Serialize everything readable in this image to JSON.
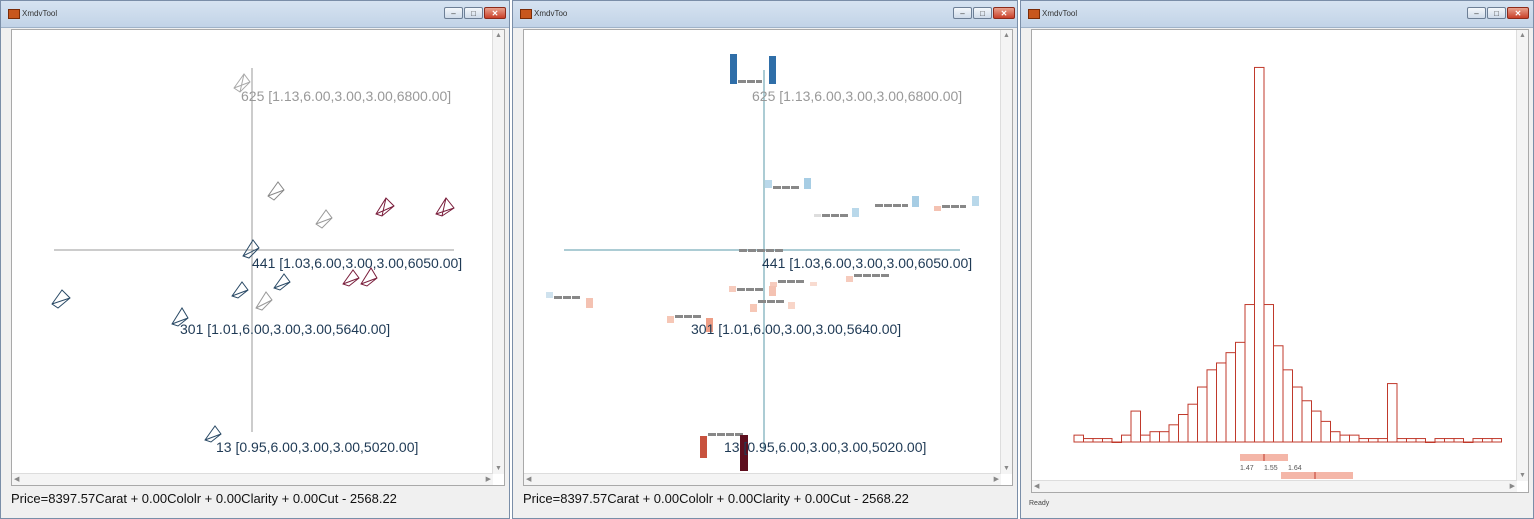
{
  "windows": [
    {
      "title": "XmdvTool",
      "formula": "Price=8397.57Carat + 0.00Cololr + 0.00Clarity + 0.00Cut - 2568.22"
    },
    {
      "title": "XmdvToo",
      "formula": "Price=8397.57Carat + 0.00Cololr + 0.00Clarity + 0.00Cut - 2568.22"
    },
    {
      "title": "XmdvTool",
      "status": "Ready"
    }
  ],
  "labels": {
    "p625": "625 [1.13,6.00,3.00,3.00,6800.00]",
    "p441": "441 [1.03,6.00,3.00,3.00,6050.00]",
    "p301": "301 [1.01,6.00,3.00,3.00,5640.00]",
    "p13": "13 [0.95,6.00,3.00,3.00,5020.00]"
  },
  "histogram": {
    "values": [
      2,
      1,
      1,
      1,
      0,
      2,
      9,
      2,
      3,
      3,
      5,
      8,
      11,
      16,
      21,
      23,
      26,
      29,
      40,
      109,
      40,
      28,
      21,
      16,
      12,
      9,
      6,
      3,
      2,
      2,
      1,
      1,
      1,
      17,
      1,
      1,
      1,
      0,
      1,
      1,
      1,
      0,
      1,
      1,
      1
    ],
    "ticks": [
      "1.47",
      "1.55",
      "1.64"
    ],
    "ymax": 110
  },
  "colors": {
    "glyph_dark": "#2a4a66",
    "glyph_red": "#7a1e3c",
    "hist_stroke": "#c0392b",
    "brush": "#f4b6a8"
  }
}
